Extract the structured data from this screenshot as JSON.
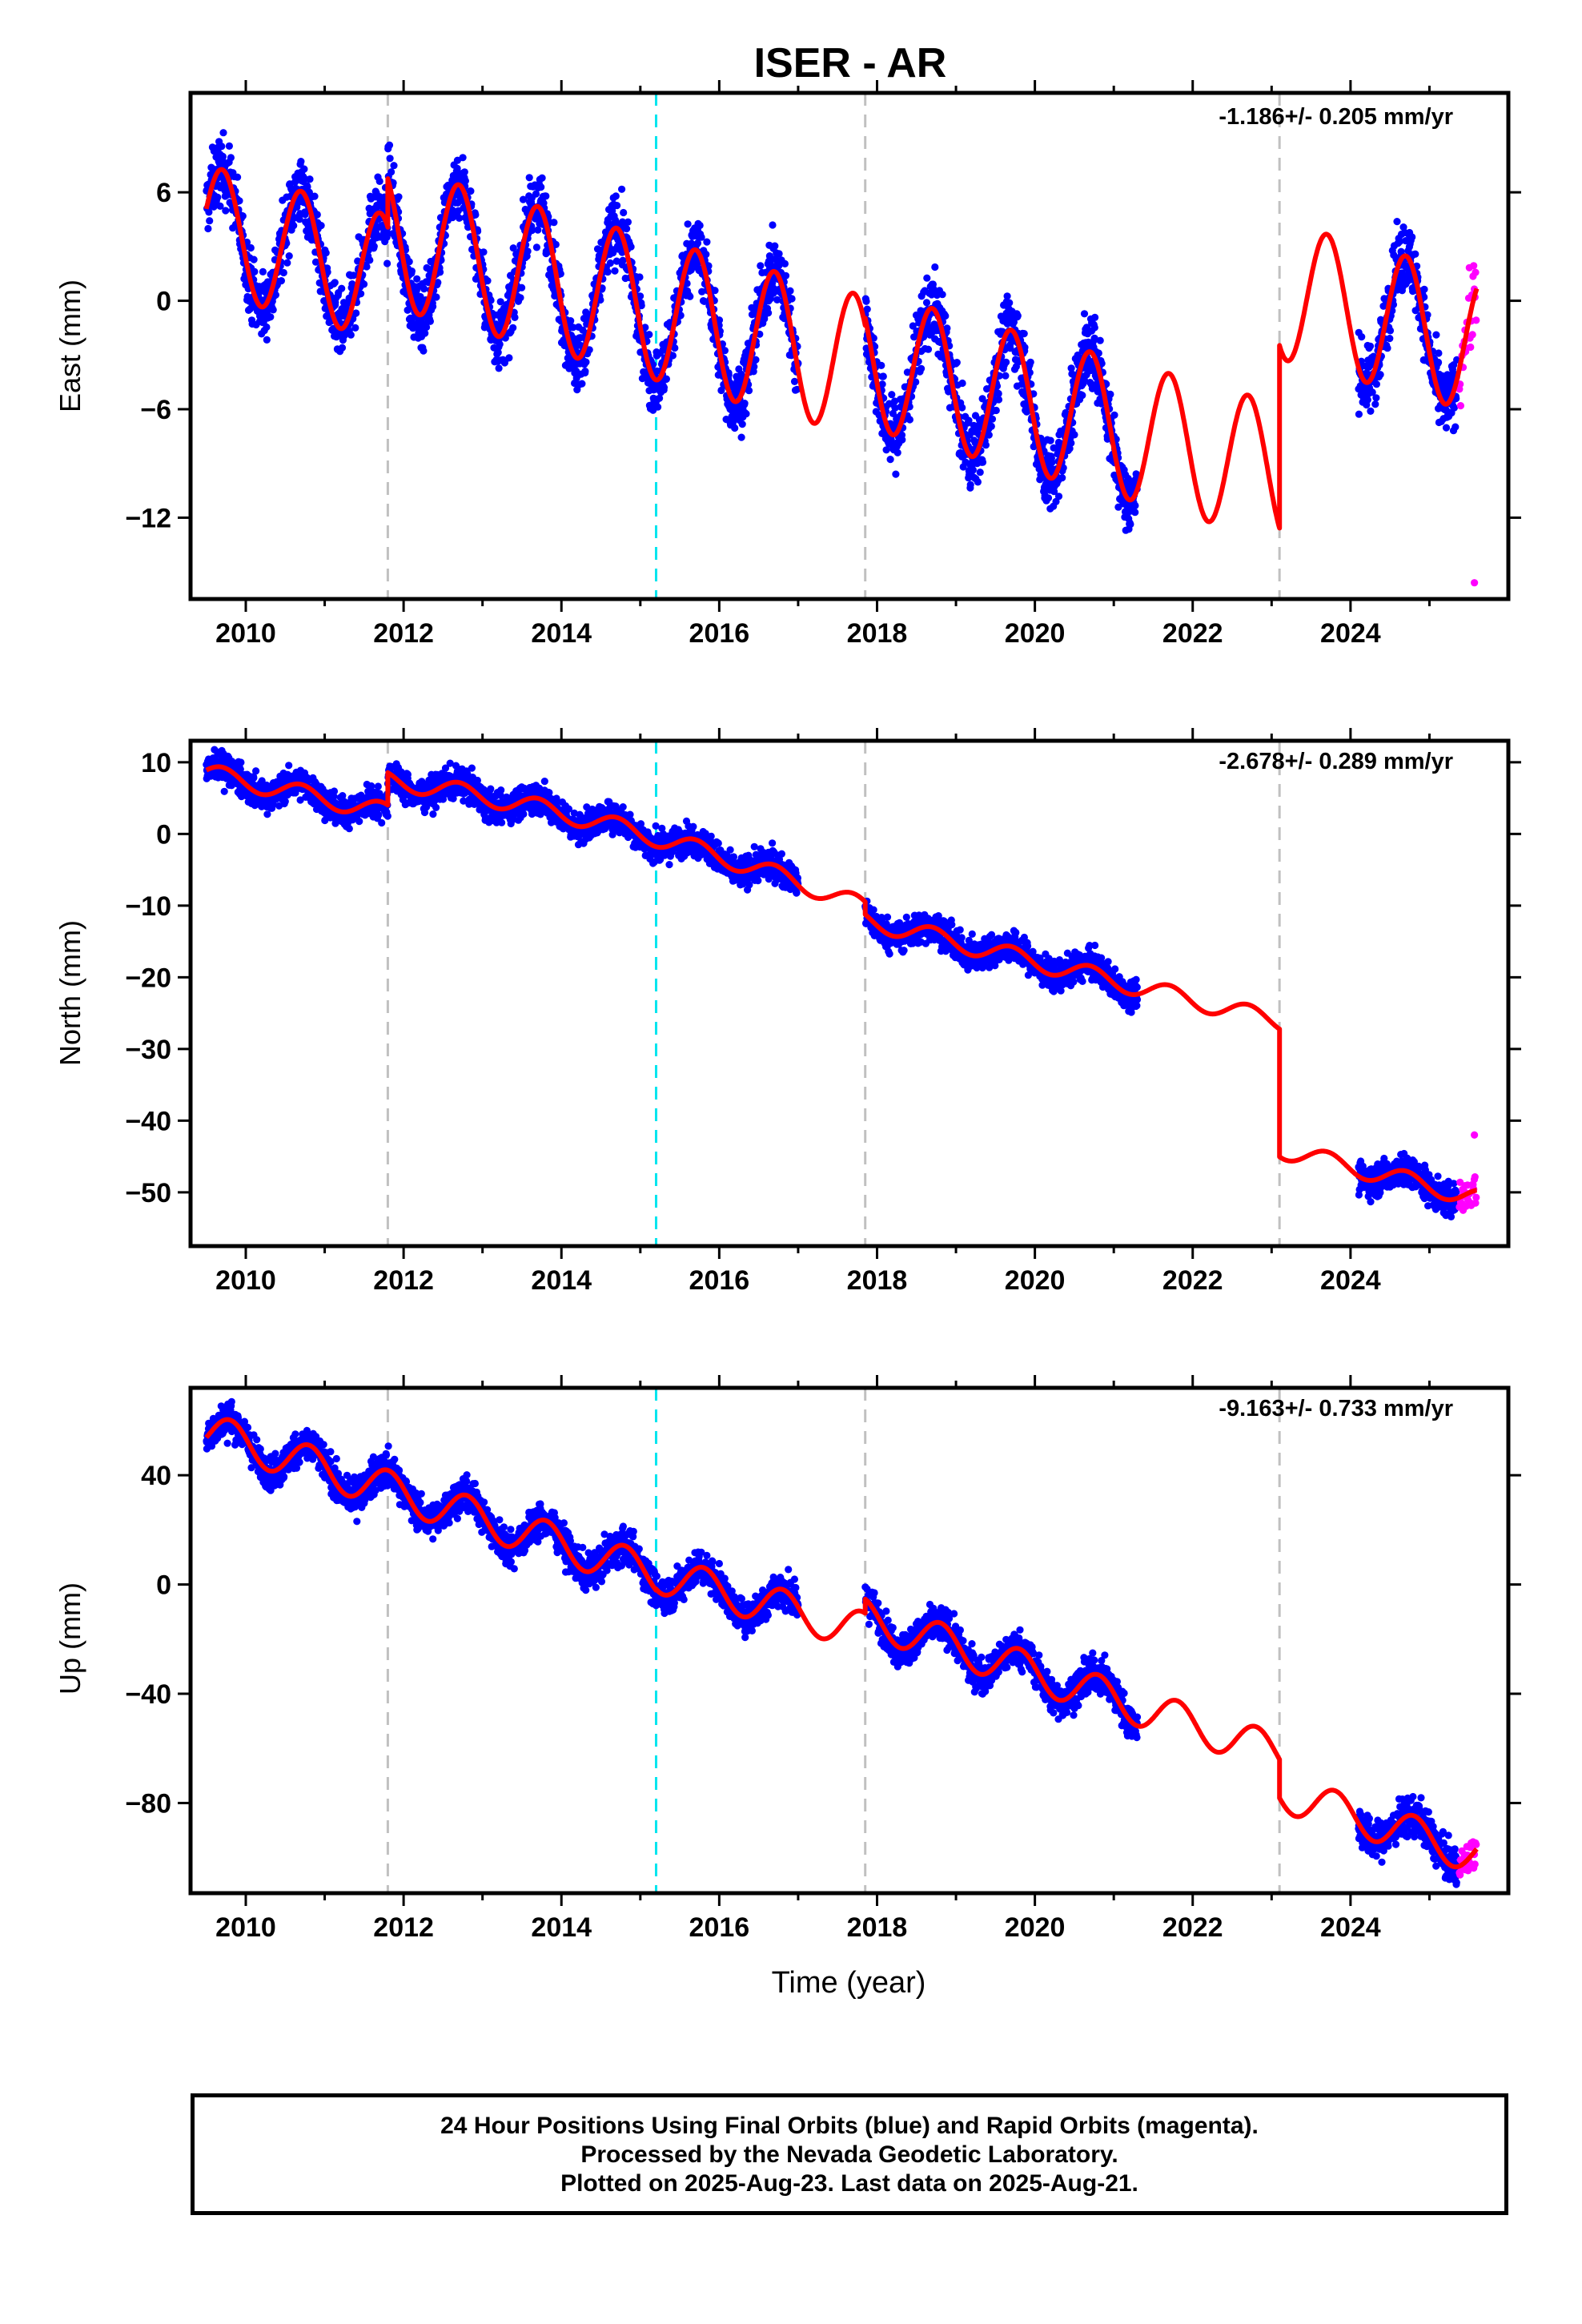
{
  "title": "ISER - AR",
  "xlabel": "Time (year)",
  "footer": {
    "line1": "24 Hour Positions Using Final Orbits (blue) and Rapid Orbits (magenta).",
    "line2": "Processed by the Nevada Geodetic Laboratory.",
    "line3": "Plotted on 2025-Aug-23. Last data on 2025-Aug-21."
  },
  "colors": {
    "final": "#0000ff",
    "rapid": "#ff00ff",
    "model": "#ff0000",
    "step_gray": "#c0c0c0",
    "step_cyan": "#00e5ee"
  },
  "chart_data": [
    {
      "type": "scatter",
      "panel": "east",
      "ylabel": "East (mm)",
      "rate_label": "-1.186+/- 0.205 mm/yr",
      "xlim": [
        2009.3,
        2026.0
      ],
      "ylim": [
        -16.5,
        11.5
      ],
      "xticks": [
        2010,
        2012,
        2014,
        2016,
        2018,
        2020,
        2022,
        2024
      ],
      "yticks": [
        6,
        0,
        -6,
        -12
      ],
      "grid": false,
      "steps_gray": [
        2011.8,
        2017.85,
        2023.1
      ],
      "steps_cyan": [
        2015.2
      ],
      "model": {
        "segments": [
          {
            "t0": 2009.5,
            "t1": 2011.8,
            "c": 4.0,
            "tref": 2009.5,
            "r": -1.2,
            "a": 3.5,
            "ph": 0.45
          },
          {
            "t0": 2011.8,
            "t1": 2017.85,
            "c": 3.6,
            "tref": 2011.8,
            "r": -1.2,
            "a": 3.9,
            "ph": 0.45
          },
          {
            "t0": 2017.85,
            "t1": 2023.1,
            "c": -3.2,
            "tref": 2017.85,
            "r": -1.2,
            "a": 3.8,
            "ph": 0.45
          },
          {
            "t0": 2023.1,
            "t1": 2025.6,
            "c": 0.6,
            "tref": 2023.1,
            "r": -1.2,
            "a": 3.8,
            "ph": 0.45
          }
        ]
      },
      "final_obs": [
        {
          "t0": 2009.5,
          "t1": 2017.0,
          "noise": 1.3
        },
        {
          "t0": 2017.85,
          "t1": 2021.3,
          "noise": 1.4
        },
        {
          "t0": 2024.1,
          "t1": 2025.35,
          "noise": 1.3
        }
      ],
      "rapid_obs": {
        "t0": 2025.38,
        "t1": 2025.6,
        "noise": 1.6,
        "outliers": [
          [
            2025.57,
            -15.6
          ]
        ]
      }
    },
    {
      "type": "scatter",
      "panel": "north",
      "ylabel": "North (mm)",
      "rate_label": "-2.678+/- 0.289 mm/yr",
      "xlim": [
        2009.3,
        2026.0
      ],
      "ylim": [
        -57.5,
        13.0
      ],
      "xticks": [
        2010,
        2012,
        2014,
        2016,
        2018,
        2020,
        2022,
        2024
      ],
      "yticks": [
        10,
        0,
        -10,
        -20,
        -30,
        -40,
        -50
      ],
      "grid": false,
      "steps_gray": [
        2011.8,
        2017.85,
        2023.1
      ],
      "steps_cyan": [
        2015.2
      ],
      "model": {
        "segments": [
          {
            "t0": 2009.5,
            "t1": 2011.8,
            "c": 8.5,
            "tref": 2009.5,
            "r": -2.4,
            "a": 1.3,
            "ph": 0.45
          },
          {
            "t0": 2011.8,
            "t1": 2017.85,
            "c": 7.5,
            "tref": 2011.8,
            "r": -1.6,
            "q": -0.22,
            "a": 1.3,
            "ph": 0.45
          },
          {
            "t0": 2017.85,
            "t1": 2023.1,
            "c": -12.0,
            "tref": 2017.85,
            "r": -2.7,
            "a": 1.3,
            "ph": 0.45
          },
          {
            "t0": 2023.1,
            "t1": 2025.6,
            "c": -44.0,
            "tref": 2023.1,
            "r": -2.7,
            "a": 1.3,
            "ph": 0.45
          }
        ]
      },
      "final_obs": [
        {
          "t0": 2009.5,
          "t1": 2017.0,
          "noise": 1.5
        },
        {
          "t0": 2017.85,
          "t1": 2021.3,
          "noise": 1.5
        },
        {
          "t0": 2024.1,
          "t1": 2025.35,
          "noise": 1.6
        }
      ],
      "rapid_obs": {
        "t0": 2025.38,
        "t1": 2025.6,
        "noise": 1.8,
        "outliers": [
          [
            2025.57,
            -42.0
          ]
        ]
      }
    },
    {
      "type": "scatter",
      "panel": "up",
      "ylabel": "Up (mm)",
      "rate_label": "-9.163+/- 0.733 mm/yr",
      "xlim": [
        2009.3,
        2026.0
      ],
      "ylim": [
        -113.0,
        72.0
      ],
      "xticks": [
        2010,
        2012,
        2014,
        2016,
        2018,
        2020,
        2022,
        2024
      ],
      "yticks": [
        40,
        0,
        -40,
        -80
      ],
      "grid": false,
      "steps_gray": [
        2011.8,
        2017.85,
        2023.1
      ],
      "steps_cyan": [
        2015.2
      ],
      "model": {
        "segments": [
          {
            "t0": 2009.5,
            "t1": 2015.2,
            "c": 56.0,
            "tref": 2009.5,
            "r": -9.2,
            "a": 7.0,
            "ph": 0.55
          },
          {
            "t0": 2015.2,
            "t1": 2017.85,
            "c": 4.0,
            "tref": 2015.2,
            "r": -8.0,
            "a": 7.0,
            "ph": 0.55
          },
          {
            "t0": 2017.85,
            "t1": 2023.1,
            "c": -12.0,
            "tref": 2017.85,
            "r": -9.5,
            "a": 7.0,
            "ph": 0.55
          },
          {
            "t0": 2023.1,
            "t1": 2025.6,
            "c": -76.0,
            "tref": 2023.1,
            "r": -9.2,
            "a": 7.0,
            "ph": 0.55
          }
        ]
      },
      "final_obs": [
        {
          "t0": 2009.5,
          "t1": 2017.0,
          "noise": 4.5
        },
        {
          "t0": 2017.85,
          "t1": 2021.3,
          "noise": 4.5
        },
        {
          "t0": 2024.1,
          "t1": 2025.35,
          "noise": 5.0
        }
      ],
      "rapid_obs": {
        "t0": 2025.38,
        "t1": 2025.6,
        "noise": 5.0,
        "outliers": []
      }
    }
  ]
}
